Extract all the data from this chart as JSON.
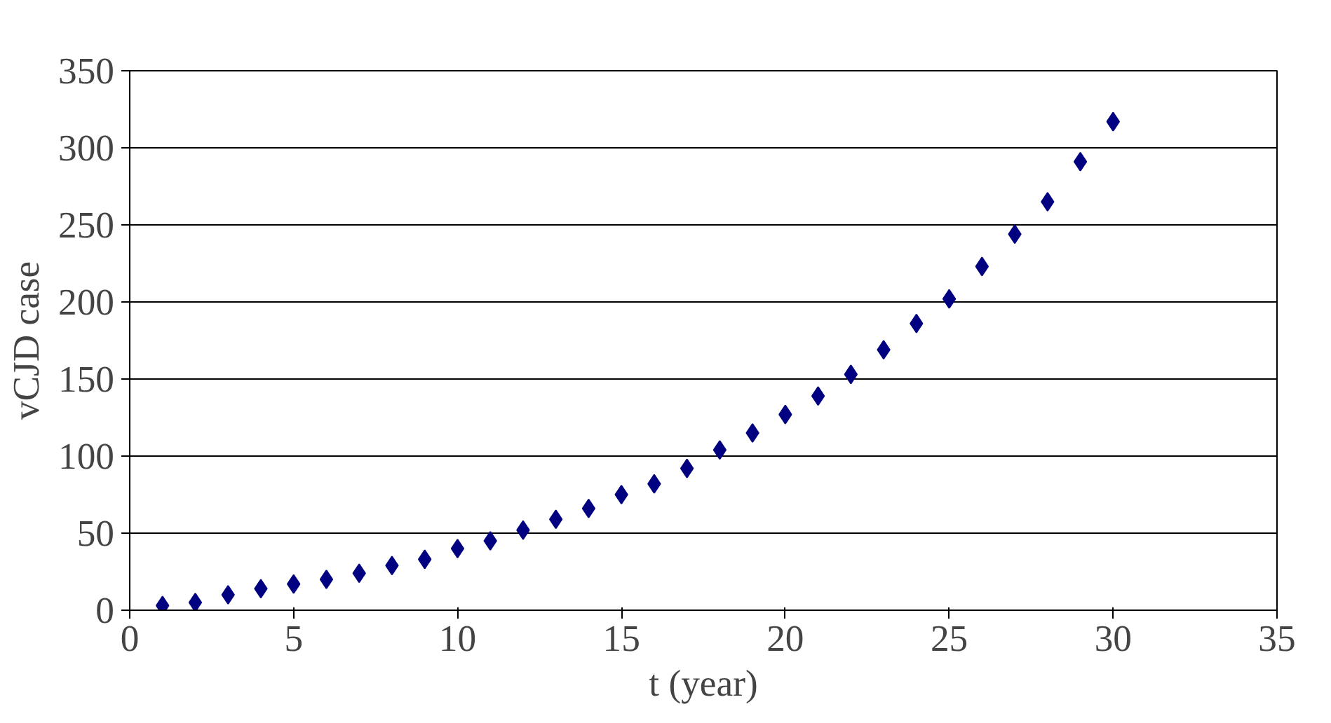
{
  "chart_data": {
    "type": "scatter",
    "xlabel": "t (year)",
    "ylabel": "vCJD case",
    "x": [
      1,
      2,
      3,
      4,
      5,
      6,
      7,
      8,
      9,
      10,
      11,
      12,
      13,
      14,
      15,
      16,
      17,
      18,
      19,
      20,
      21,
      22,
      23,
      24,
      25,
      26,
      27,
      28,
      29,
      30
    ],
    "series": [
      {
        "color": "#000080",
        "values": [
          3,
          5,
          10,
          14,
          17,
          20,
          24,
          29,
          33,
          40,
          45,
          52,
          59,
          66,
          75,
          82,
          92,
          104,
          115,
          127,
          139,
          153,
          169,
          186,
          202,
          223,
          244,
          265,
          291,
          317
        ]
      }
    ],
    "xlim": [
      0,
      35
    ],
    "xticks": [
      0,
      5,
      10,
      15,
      20,
      25,
      30,
      35
    ],
    "ylim": [
      0,
      350
    ],
    "yticks": [
      0,
      50,
      100,
      150,
      200,
      250,
      300,
      350
    ],
    "grid": "y",
    "marker": "diamond"
  }
}
